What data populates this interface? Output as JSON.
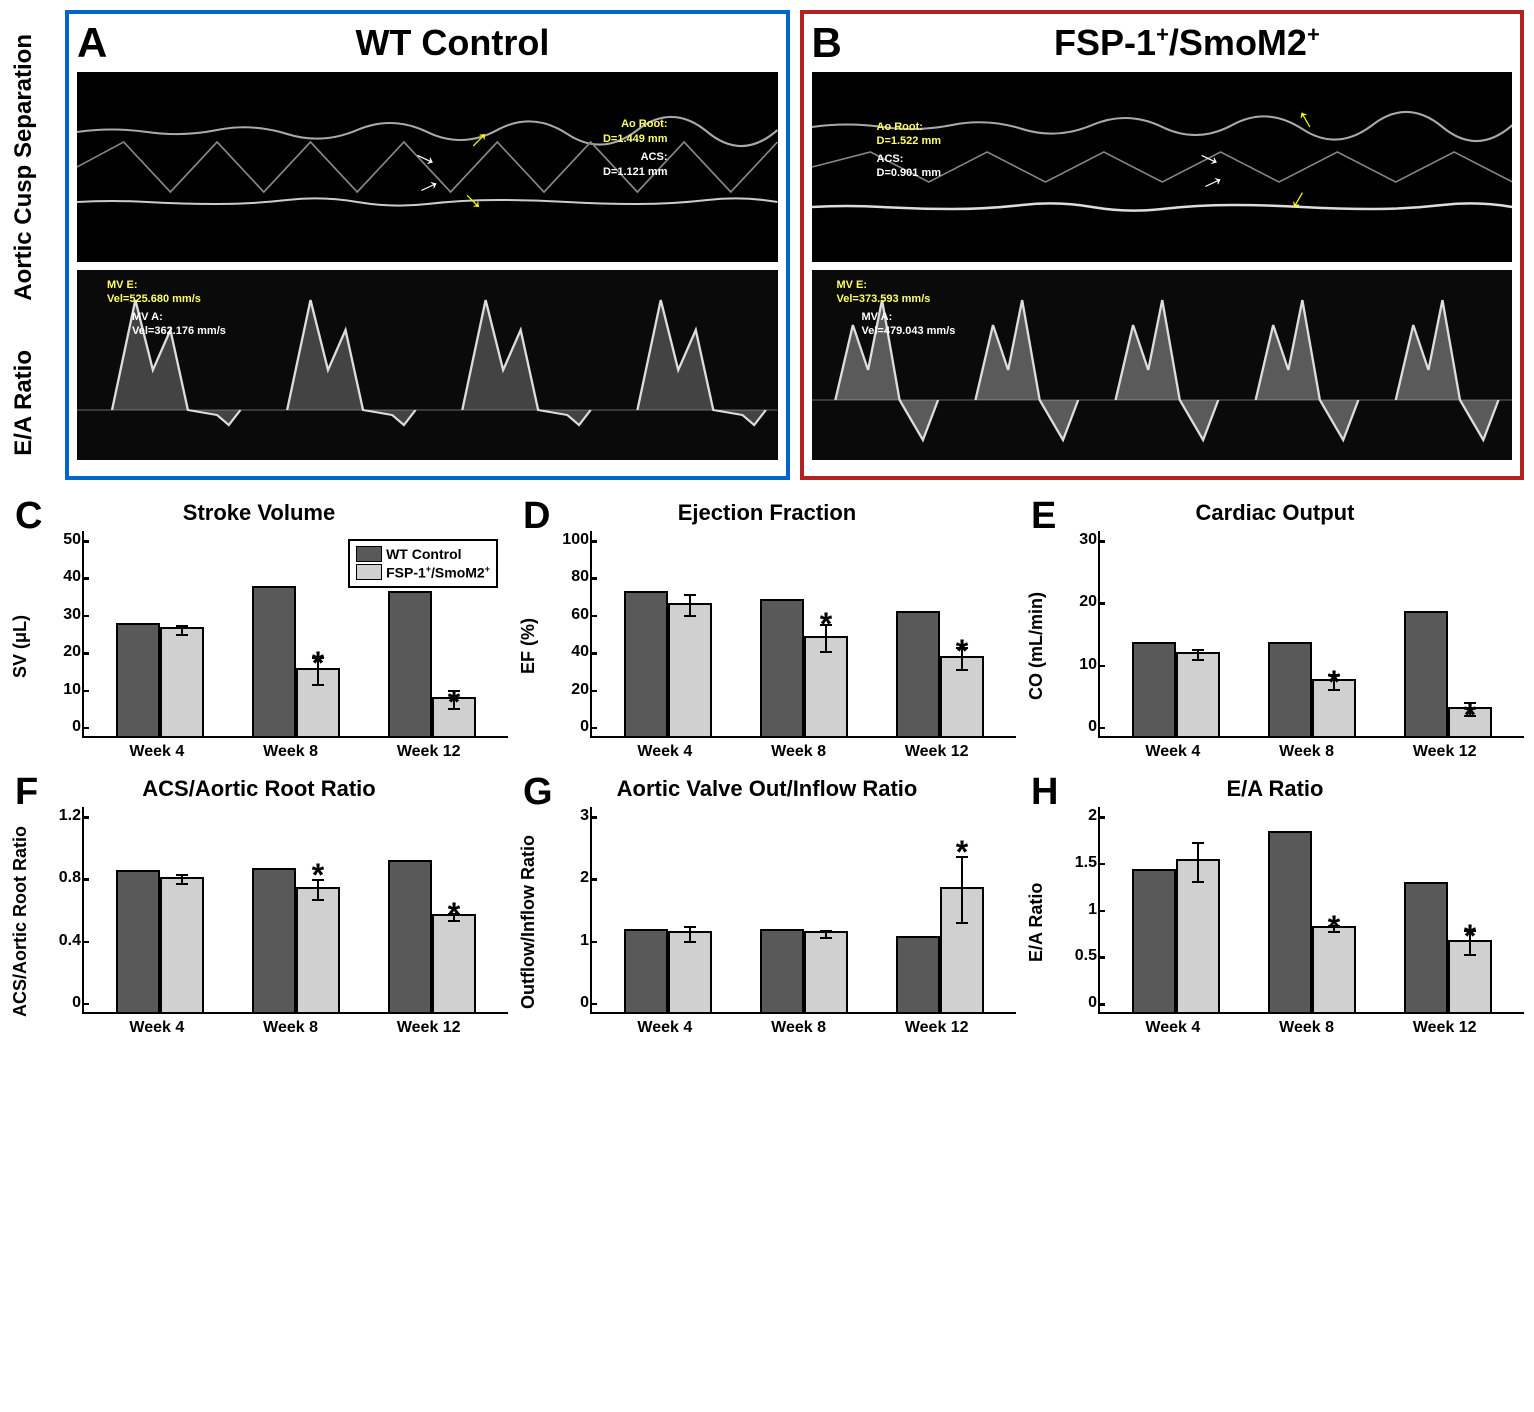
{
  "panelA": {
    "letter": "A",
    "title": "WT Control",
    "border_color": "#0066cc",
    "acs": {
      "ao_root_label": "Ao Root:",
      "ao_root_value": "D=1.449 mm",
      "acs_label": "ACS:",
      "acs_value": "D=1.121 mm"
    },
    "ea": {
      "mve_label": "MV E:",
      "mve_value": "Vel=525.680 mm/s",
      "mva_label": "MV A:",
      "mva_value": "Vel=362.176 mm/s"
    }
  },
  "panelB": {
    "letter": "B",
    "title_html": "FSP-1<sup>+</sup>/SmoM2<sup>+</sup>",
    "border_color": "#b22222",
    "acs": {
      "ao_root_label": "Ao Root:",
      "ao_root_value": "D=1.522 mm",
      "acs_label": "ACS:",
      "acs_value": "D=0.901 mm"
    },
    "ea": {
      "mve_label": "MV E:",
      "mve_value": "Vel=373.593 mm/s",
      "mva_label": "MV A:",
      "mva_value": "Vel=479.043 mm/s"
    }
  },
  "side_labels": {
    "top": "Aortic Cusp Separation",
    "bottom": "E/A Ratio"
  },
  "legend": {
    "wt": "WT Control",
    "fsp_html": "FSP-1<sup>+</sup>/SmoM2<sup>+</sup>"
  },
  "charts": {
    "C": {
      "title": "Stroke Volume",
      "ylabel": "SV (μL)",
      "ymax": 50,
      "yticks": [
        50,
        40,
        30,
        20,
        10,
        0
      ],
      "categories": [
        "Week 4",
        "Week 8",
        "Week 12"
      ],
      "wt": [
        27,
        36,
        35
      ],
      "fsp": [
        26,
        16,
        9
      ],
      "fsp_err": [
        1,
        5,
        6
      ],
      "sig": [
        false,
        true,
        true
      ],
      "show_legend": true
    },
    "D": {
      "title": "Ejection Fraction",
      "ylabel": "EF (%)",
      "ymax": 100,
      "yticks": [
        100,
        80,
        60,
        40,
        20,
        0
      ],
      "categories": [
        "Week 4",
        "Week 8",
        "Week 12"
      ],
      "wt": [
        70,
        66,
        60
      ],
      "fsp": [
        64,
        48,
        38
      ],
      "fsp_err": [
        4,
        7,
        7
      ],
      "sig": [
        false,
        true,
        true
      ]
    },
    "E": {
      "title": "Cardiac Output",
      "ylabel": "CO (mL/min)",
      "ymax": 30,
      "yticks": [
        30,
        20,
        10,
        0
      ],
      "categories": [
        "Week 4",
        "Week 8",
        "Week 12"
      ],
      "wt": [
        13.5,
        13.5,
        18
      ],
      "fsp": [
        12,
        8,
        4
      ],
      "fsp_err": [
        1,
        2,
        3.5
      ],
      "sig": [
        false,
        true,
        true
      ]
    },
    "F": {
      "title": "ACS/Aortic Root Ratio",
      "ylabel": "ACS/Aortic Root Ratio",
      "ymax": 1.2,
      "yticks": [
        1.2,
        0.8,
        0.4,
        0
      ],
      "categories": [
        "Week 4",
        "Week 8",
        "Week 12"
      ],
      "wt": [
        0.82,
        0.83,
        0.88
      ],
      "fsp": [
        0.78,
        0.72,
        0.56
      ],
      "fsp_err": [
        0.02,
        0.05,
        0.02
      ],
      "sig": [
        false,
        true,
        true
      ]
    },
    "G": {
      "title": "Aortic Valve Out/Inflow Ratio",
      "ylabel": "Outflow/Inflow Ratio",
      "ymax": 3,
      "yticks": [
        3,
        2,
        1,
        0
      ],
      "categories": [
        "Week 4",
        "Week 8",
        "Week 12"
      ],
      "wt": [
        1.18,
        1.18,
        1.08
      ],
      "fsp": [
        1.15,
        1.15,
        1.8
      ],
      "fsp_err": [
        0.15,
        0.06,
        0.4
      ],
      "sig": [
        false,
        false,
        true
      ]
    },
    "H": {
      "title": "E/A Ratio",
      "ylabel": "E/A Ratio",
      "ymax": 2.0,
      "yticks": [
        2.0,
        1.5,
        1.0,
        0.5,
        0
      ],
      "categories": [
        "Week 4",
        "Week 8",
        "Week 12"
      ],
      "wt": [
        1.38,
        1.75,
        1.25
      ],
      "fsp": [
        1.47,
        0.82,
        0.68
      ],
      "fsp_err": [
        0.13,
        0.04,
        0.17
      ],
      "sig": [
        false,
        true,
        true
      ]
    }
  },
  "colors": {
    "wt_bar": "#595959",
    "fsp_bar": "#d0d0d0",
    "background": "#ffffff"
  }
}
